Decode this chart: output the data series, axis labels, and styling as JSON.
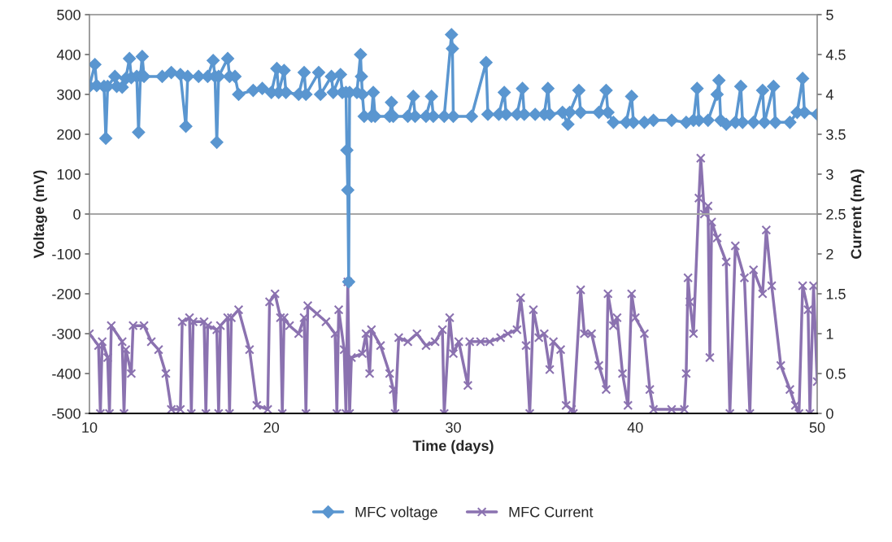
{
  "chart_data": {
    "type": "line",
    "xlabel": "Time (days)",
    "ylabel": "Voltage (mV)",
    "y2label": "Current (mA)",
    "xlim": [
      10,
      50
    ],
    "xticks": [
      10,
      20,
      30,
      40,
      50
    ],
    "ylim": [
      -500,
      500
    ],
    "yticks": [
      -500,
      -400,
      -300,
      -200,
      -100,
      0,
      100,
      200,
      300,
      400,
      500
    ],
    "y2lim": [
      0,
      5
    ],
    "y2ticks": [
      0,
      0.5,
      1,
      1.5,
      2,
      2.5,
      3,
      3.5,
      4,
      4.5,
      5
    ],
    "grid": false,
    "legend": "bottom",
    "ref_lines": [
      {
        "axis": "y",
        "value": 0,
        "color": "#a6a6a6",
        "line_style": "solid"
      }
    ],
    "series": [
      {
        "name": "MFC voltage",
        "color": "#5a96d0",
        "marker": "diamond",
        "x": [
          10.0,
          10.3,
          10.4,
          10.8,
          10.9,
          11.0,
          11.4,
          11.5,
          11.8,
          12.0,
          12.2,
          12.3,
          12.6,
          12.7,
          12.8,
          12.9,
          13.0,
          14.0,
          14.5,
          15.0,
          15.3,
          15.4,
          16.0,
          16.5,
          16.8,
          16.9,
          17.0,
          17.1,
          17.6,
          17.7,
          18.0,
          18.2,
          19.0,
          19.5,
          20.0,
          20.3,
          20.4,
          20.7,
          20.8,
          21.5,
          21.8,
          21.9,
          22.6,
          22.7,
          23.3,
          23.4,
          23.8,
          23.9,
          24.1,
          24.15,
          24.2,
          24.25,
          24.3,
          24.7,
          24.9,
          24.95,
          25.0,
          25.1,
          25.5,
          25.6,
          25.7,
          26.5,
          26.6,
          26.7,
          27.5,
          27.8,
          27.9,
          28.5,
          28.8,
          28.9,
          29.5,
          29.9,
          29.95,
          30.0,
          31.0,
          31.8,
          31.9,
          32.5,
          32.8,
          32.9,
          33.5,
          33.8,
          33.9,
          34.5,
          35.0,
          35.2,
          35.3,
          36.0,
          36.3,
          36.4,
          36.9,
          37.0,
          38.0,
          38.4,
          38.5,
          38.8,
          39.5,
          39.8,
          39.9,
          40.5,
          41.0,
          42.0,
          42.8,
          43.2,
          43.4,
          43.5,
          44.0,
          44.5,
          44.6,
          44.7,
          45.0,
          45.5,
          45.8,
          45.9,
          46.5,
          47.0,
          47.1,
          47.6,
          47.7,
          48.5,
          48.9,
          49.2,
          49.3,
          50.0
        ],
        "values": [
          320,
          375,
          322,
          320,
          190,
          320,
          345,
          320,
          318,
          340,
          390,
          342,
          345,
          205,
          345,
          395,
          345,
          345,
          355,
          350,
          220,
          345,
          345,
          345,
          385,
          345,
          180,
          345,
          390,
          345,
          345,
          300,
          310,
          315,
          305,
          365,
          305,
          360,
          305,
          300,
          355,
          300,
          355,
          300,
          345,
          305,
          350,
          305,
          305,
          160,
          60,
          -170,
          305,
          305,
          400,
          345,
          300,
          245,
          245,
          305,
          245,
          245,
          280,
          245,
          245,
          295,
          245,
          245,
          295,
          245,
          245,
          450,
          415,
          245,
          245,
          380,
          250,
          250,
          305,
          250,
          250,
          315,
          250,
          250,
          250,
          315,
          250,
          255,
          225,
          255,
          310,
          255,
          255,
          310,
          255,
          230,
          230,
          295,
          230,
          230,
          235,
          235,
          230,
          235,
          315,
          235,
          235,
          300,
          335,
          235,
          225,
          230,
          320,
          230,
          230,
          310,
          230,
          320,
          230,
          230,
          255,
          340,
          255,
          250
        ]
      },
      {
        "name": "MFC Current",
        "color": "#8b72b0",
        "marker": "cross",
        "axis": "y2",
        "x": [
          10.0,
          10.5,
          10.6,
          10.7,
          11.0,
          11.1,
          11.2,
          11.8,
          11.9,
          12.0,
          12.3,
          12.4,
          13.0,
          13.4,
          13.8,
          14.2,
          14.5,
          15.0,
          15.1,
          15.5,
          15.6,
          15.7,
          16.3,
          16.4,
          16.5,
          17.0,
          17.1,
          17.2,
          17.6,
          17.7,
          17.8,
          18.2,
          18.8,
          19.2,
          19.8,
          19.9,
          20.2,
          20.5,
          20.6,
          20.7,
          21.0,
          21.5,
          21.8,
          21.9,
          22.0,
          22.5,
          23.0,
          23.5,
          23.6,
          23.7,
          24.0,
          24.1,
          24.2,
          24.3,
          24.4,
          25.0,
          25.2,
          25.4,
          25.5,
          26.0,
          26.5,
          26.7,
          26.8,
          27.0,
          27.5,
          28.0,
          28.5,
          29.0,
          29.4,
          29.5,
          29.8,
          30.0,
          30.3,
          30.8,
          30.9,
          31.5,
          32.0,
          32.6,
          33.0,
          33.5,
          33.7,
          34.0,
          34.2,
          34.4,
          34.7,
          35.0,
          35.3,
          35.5,
          35.9,
          36.2,
          36.5,
          36.6,
          37.0,
          37.2,
          37.6,
          38.0,
          38.4,
          38.5,
          38.8,
          39.0,
          39.3,
          39.6,
          39.8,
          40.0,
          40.5,
          40.8,
          41.0,
          42.0,
          42.7,
          42.8,
          42.9,
          43.0,
          43.2,
          43.5,
          43.6,
          43.8,
          44.0,
          44.1,
          44.2,
          44.5,
          45.0,
          45.2,
          45.5,
          46.0,
          46.3,
          46.5,
          47.0,
          47.2,
          47.5,
          48.0,
          48.5,
          48.8,
          49.0,
          49.2,
          49.5,
          49.6,
          49.8,
          50.0
        ],
        "values": [
          1.0,
          0.85,
          0,
          0.9,
          0.7,
          0,
          1.1,
          0.9,
          0,
          0.8,
          0.5,
          1.1,
          1.1,
          0.9,
          0.8,
          0.5,
          0.05,
          0.05,
          1.15,
          1.2,
          0,
          1.15,
          1.15,
          0,
          1.1,
          1.05,
          0,
          1.1,
          1.2,
          0,
          1.2,
          1.3,
          0.8,
          0.1,
          0.05,
          1.4,
          1.5,
          1.2,
          0,
          1.2,
          1.1,
          1.0,
          1.2,
          0,
          1.35,
          1.25,
          1.15,
          1.0,
          0,
          1.3,
          0.8,
          0,
          1.65,
          0,
          0.7,
          0.75,
          1.0,
          0.5,
          1.05,
          0.85,
          0.5,
          0.3,
          0,
          0.95,
          0.9,
          1.0,
          0.85,
          0.9,
          1.05,
          0,
          1.2,
          0.75,
          0.9,
          0.35,
          0.9,
          0.9,
          0.9,
          0.95,
          1.0,
          1.05,
          1.45,
          0.85,
          0,
          1.3,
          0.95,
          1.0,
          0.55,
          0.9,
          0.8,
          0.1,
          0.05,
          0,
          1.55,
          1.0,
          1.0,
          0.6,
          0.3,
          1.5,
          1.1,
          1.2,
          0.5,
          0.1,
          1.5,
          1.2,
          1.0,
          0.3,
          0.05,
          0.05,
          0.05,
          0.5,
          1.7,
          1.4,
          1.0,
          2.7,
          3.2,
          2.5,
          2.6,
          0.7,
          2.4,
          2.2,
          1.9,
          0,
          2.1,
          1.7,
          0,
          1.8,
          1.5,
          2.3,
          1.6,
          0.6,
          0.3,
          0.1,
          0,
          1.6,
          1.3,
          0,
          1.6,
          0.4
        ]
      }
    ]
  }
}
